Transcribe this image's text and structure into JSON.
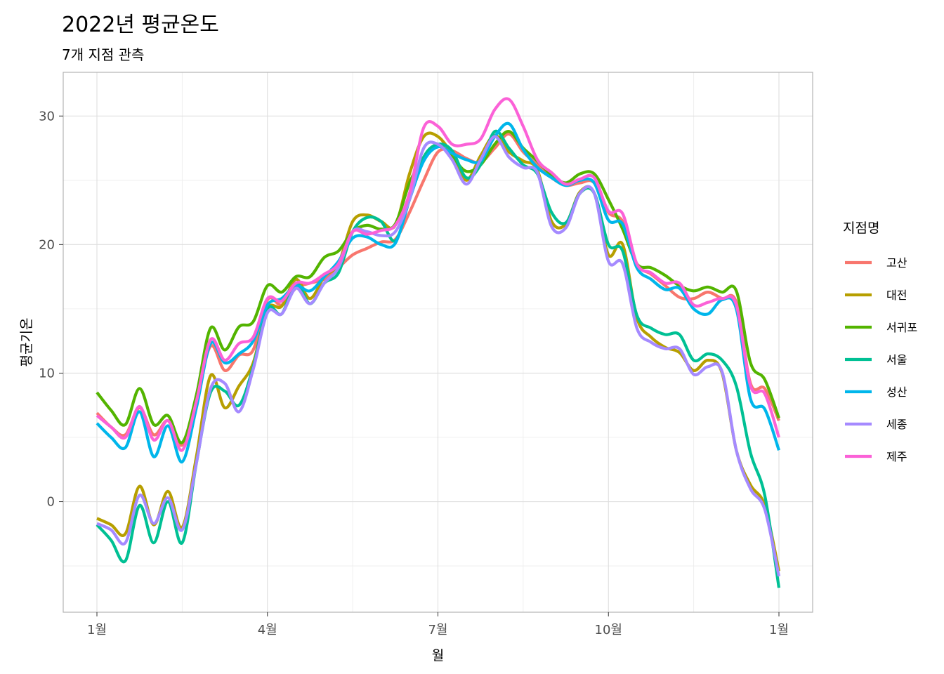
{
  "chart_data": {
    "type": "line",
    "title": "2022년 평균온도",
    "subtitle": "7개 지점 관측",
    "xlabel": "월",
    "ylabel": "평균기온",
    "xlim": [
      0,
      48
    ],
    "ylim": [
      -8.6,
      33.4
    ],
    "xticks": [
      {
        "x": 0,
        "label": "1월"
      },
      {
        "x": 12,
        "label": "4월"
      },
      {
        "x": 24,
        "label": "7월"
      },
      {
        "x": 36,
        "label": "10월"
      },
      {
        "x": 48,
        "label": "1월"
      }
    ],
    "yticks": [
      0,
      10,
      20,
      30
    ],
    "grid": true,
    "legend": {
      "title": "지점명",
      "position": "right"
    },
    "x": [
      0,
      1,
      2,
      3,
      4,
      5,
      6,
      7,
      8,
      9,
      10,
      11,
      12,
      13,
      14,
      15,
      16,
      17,
      18,
      19,
      20,
      21,
      22,
      23,
      24,
      25,
      26,
      27,
      28,
      29,
      30,
      31,
      32,
      33,
      34,
      35,
      36,
      37,
      38,
      39,
      40,
      41,
      42,
      43,
      44,
      45,
      46,
      47,
      48
    ],
    "series": [
      {
        "name": "고산",
        "color": "#F8766D",
        "values": [
          6.9,
          5.8,
          5.2,
          7.3,
          5.2,
          6.3,
          4.4,
          7.8,
          12.1,
          10.2,
          11.4,
          11.8,
          15.7,
          15.3,
          16.6,
          17.0,
          17.3,
          18.2,
          19.2,
          19.7,
          20.2,
          20.4,
          22.5,
          25.0,
          27.2,
          27.3,
          26.7,
          26.4,
          27.5,
          28.6,
          27.2,
          26.2,
          25.2,
          24.6,
          24.8,
          24.8,
          22.5,
          21.8,
          18.5,
          17.7,
          16.8,
          15.9,
          15.8,
          16.3,
          15.8,
          15.5,
          9.2,
          8.8,
          6.3
        ]
      },
      {
        "name": "대전",
        "color": "#B79F00",
        "values": [
          -1.3,
          -1.8,
          -2.5,
          1.2,
          -1.8,
          0.8,
          -2.0,
          3.5,
          9.8,
          7.3,
          9.0,
          10.8,
          15.0,
          15.2,
          17.3,
          15.8,
          17.5,
          18.5,
          21.8,
          22.3,
          21.8,
          21.5,
          25.5,
          28.4,
          28.4,
          27.0,
          25.0,
          26.9,
          28.5,
          27.2,
          26.5,
          25.8,
          21.8,
          21.6,
          24.1,
          24.0,
          19.2,
          20.0,
          14.3,
          12.8,
          12.0,
          11.6,
          10.2,
          11.0,
          10.0,
          4.0,
          1.3,
          -0.3,
          -5.4
        ]
      },
      {
        "name": "서귀포",
        "color": "#53B400",
        "values": [
          8.5,
          7.1,
          6.0,
          8.8,
          6.0,
          6.7,
          4.6,
          8.3,
          13.5,
          11.8,
          13.6,
          14.0,
          16.8,
          16.3,
          17.5,
          17.5,
          19.0,
          19.5,
          21.0,
          21.5,
          21.2,
          21.6,
          24.8,
          26.8,
          27.8,
          26.8,
          25.7,
          26.2,
          27.8,
          28.8,
          27.5,
          26.5,
          25.4,
          24.8,
          25.5,
          25.5,
          23.5,
          21.2,
          18.5,
          18.2,
          17.6,
          16.8,
          16.4,
          16.7,
          16.3,
          16.4,
          10.8,
          9.5,
          6.5
        ]
      },
      {
        "name": "서울",
        "color": "#00C094",
        "values": [
          -1.8,
          -3.0,
          -4.6,
          -0.3,
          -3.2,
          0.0,
          -3.2,
          3.0,
          8.5,
          8.6,
          7.5,
          10.5,
          15.0,
          14.6,
          17.0,
          15.4,
          17.0,
          17.8,
          21.0,
          22.1,
          21.8,
          20.3,
          23.5,
          26.8,
          27.8,
          27.3,
          25.2,
          26.2,
          28.8,
          27.5,
          26.2,
          25.5,
          22.5,
          21.7,
          24.0,
          24.0,
          20.0,
          19.5,
          14.5,
          13.5,
          13.0,
          13.0,
          11.0,
          11.5,
          11.0,
          9.0,
          3.8,
          0.5,
          -6.7
        ]
      },
      {
        "name": "성산",
        "color": "#00B6EB",
        "values": [
          6.1,
          5.0,
          4.2,
          7.0,
          3.5,
          5.9,
          3.1,
          7.3,
          12.3,
          10.8,
          11.5,
          12.5,
          15.3,
          15.8,
          16.8,
          16.4,
          17.5,
          18.7,
          20.5,
          20.6,
          20.0,
          20.1,
          23.5,
          26.5,
          27.6,
          27.1,
          26.6,
          26.5,
          28.4,
          29.4,
          27.4,
          26.0,
          25.2,
          24.6,
          25.0,
          24.8,
          21.9,
          21.6,
          18.2,
          17.3,
          16.5,
          16.6,
          15.0,
          14.6,
          15.7,
          15.0,
          8.0,
          7.2,
          4.0
        ]
      },
      {
        "name": "세종",
        "color": "#A58AFF",
        "values": [
          -1.7,
          -2.2,
          -3.2,
          0.5,
          -1.7,
          0.3,
          -2.2,
          3.0,
          8.8,
          9.2,
          7.0,
          10.3,
          14.7,
          14.6,
          16.6,
          15.4,
          17.0,
          18.2,
          21.0,
          21.0,
          20.7,
          21.0,
          23.5,
          27.5,
          27.8,
          26.6,
          24.7,
          26.6,
          28.4,
          26.8,
          26.0,
          25.6,
          21.4,
          21.3,
          24.0,
          24.0,
          18.7,
          18.5,
          13.5,
          12.4,
          11.9,
          11.9,
          9.9,
          10.5,
          10.1,
          4.0,
          1.0,
          -0.6,
          -5.8
        ]
      },
      {
        "name": "제주",
        "color": "#FB61D7",
        "values": [
          6.7,
          5.8,
          5.0,
          7.4,
          4.8,
          6.3,
          4.0,
          7.8,
          12.6,
          11.0,
          12.3,
          12.8,
          15.8,
          15.6,
          17.0,
          17.0,
          17.7,
          18.5,
          21.0,
          20.8,
          21.1,
          21.5,
          24.0,
          29.1,
          29.2,
          27.8,
          27.8,
          28.2,
          30.5,
          31.3,
          29.2,
          26.6,
          25.6,
          24.7,
          25.1,
          25.2,
          22.6,
          22.4,
          18.5,
          17.8,
          17.0,
          17.0,
          15.3,
          15.5,
          15.8,
          15.3,
          9.0,
          8.4,
          5.0
        ]
      }
    ]
  }
}
